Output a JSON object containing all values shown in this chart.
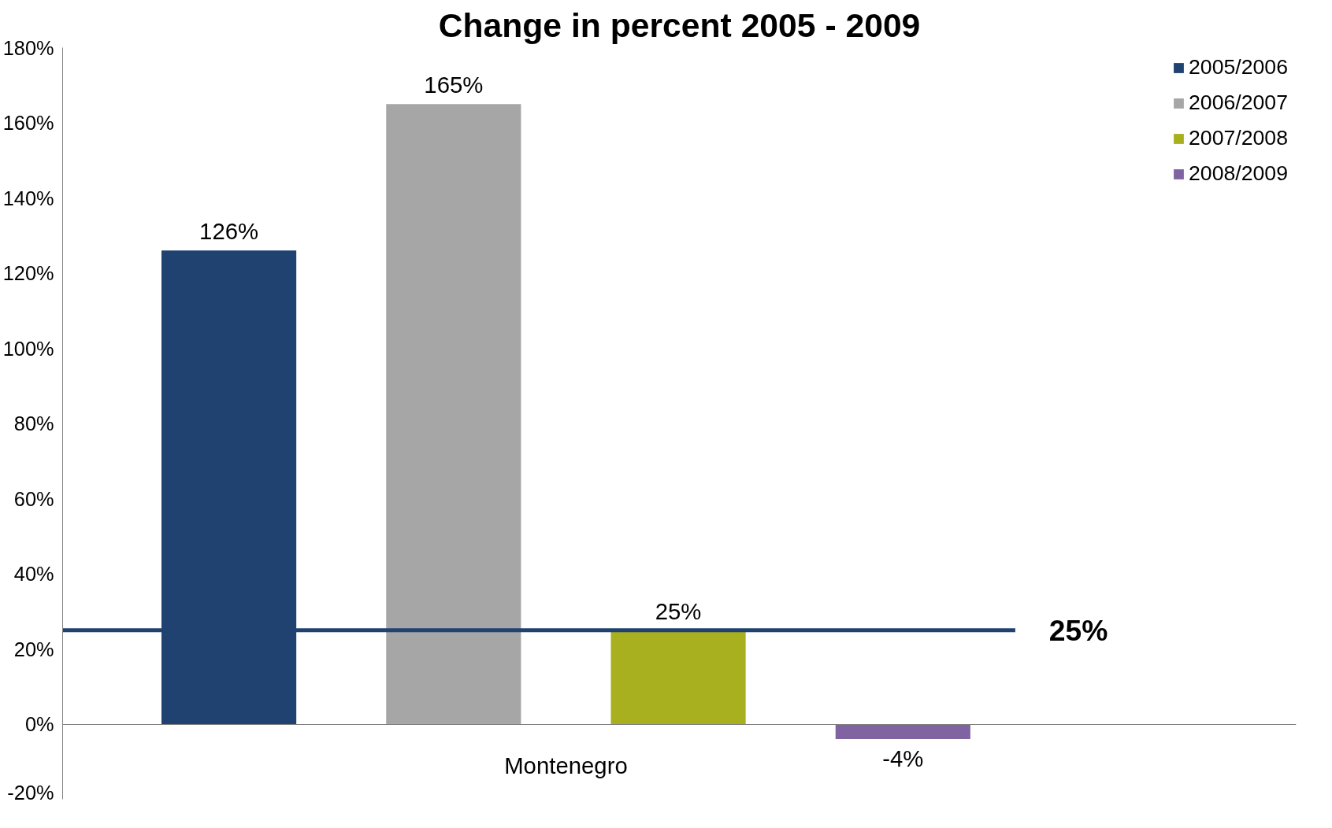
{
  "chart_data": {
    "type": "bar",
    "title": "Change in percent 2005 - 2009",
    "categories": [
      "Montenegro"
    ],
    "series": [
      {
        "name": "2005/2006",
        "color": "#1f4270",
        "values": [
          126
        ],
        "value_labels": [
          "126%"
        ]
      },
      {
        "name": "2006/2007",
        "color": "#a6a6a6",
        "values": [
          165
        ],
        "value_labels": [
          "165%"
        ]
      },
      {
        "name": "2007/2008",
        "color": "#a8b01f",
        "values": [
          25
        ],
        "value_labels": [
          "25%"
        ]
      },
      {
        "name": "2008/2009",
        "color": "#8064a2",
        "values": [
          -4
        ],
        "value_labels": [
          "-4%"
        ]
      }
    ],
    "ylim": [
      -20,
      180
    ],
    "yticks": [
      {
        "value": -20,
        "label": "-20%"
      },
      {
        "value": 0,
        "label": "0%"
      },
      {
        "value": 20,
        "label": "20%"
      },
      {
        "value": 40,
        "label": "40%"
      },
      {
        "value": 60,
        "label": "60%"
      },
      {
        "value": 80,
        "label": "80%"
      },
      {
        "value": 100,
        "label": "100%"
      },
      {
        "value": 120,
        "label": "120%"
      },
      {
        "value": 140,
        "label": "140%"
      },
      {
        "value": 160,
        "label": "160%"
      },
      {
        "value": 180,
        "label": "180%"
      }
    ],
    "ref_lines": [
      {
        "axis": "y",
        "value": 25,
        "label": "25%",
        "color": "#1f4270"
      }
    ],
    "legend": "top right"
  }
}
